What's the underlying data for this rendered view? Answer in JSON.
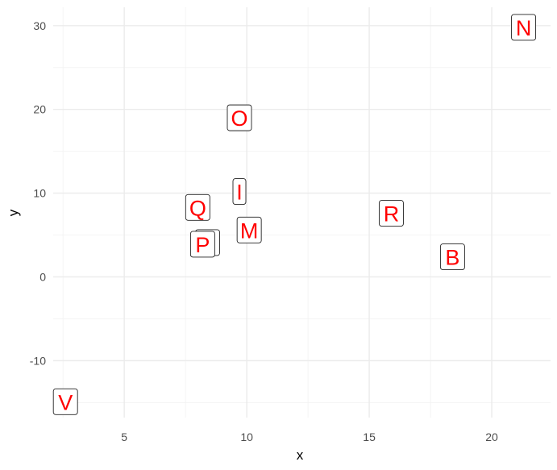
{
  "chart_data": {
    "type": "scatter",
    "xlabel": "x",
    "ylabel": "y",
    "xlim": [
      2.1,
      22.4
    ],
    "ylim": [
      -16.8,
      32.2
    ],
    "x_ticks": [
      5,
      10,
      15,
      20
    ],
    "y_ticks": [
      -10,
      0,
      10,
      20,
      30
    ],
    "grid": true,
    "label_color": "#ff0000",
    "points": [
      {
        "label": "N",
        "x": 21.3,
        "y": 29.8
      },
      {
        "label": "O",
        "x": 9.7,
        "y": 19.0
      },
      {
        "label": "I",
        "x": 9.7,
        "y": 10.2
      },
      {
        "label": "Q",
        "x": 8.0,
        "y": 8.3
      },
      {
        "label": "R",
        "x": 15.9,
        "y": 7.6
      },
      {
        "label": "M",
        "x": 10.1,
        "y": 5.6
      },
      {
        "label": "P",
        "x": 8.4,
        "y": 4.1
      },
      {
        "label": "P",
        "x": 8.2,
        "y": 3.9
      },
      {
        "label": "B",
        "x": 18.4,
        "y": 2.4
      },
      {
        "label": "V",
        "x": 2.6,
        "y": -14.9
      }
    ]
  }
}
